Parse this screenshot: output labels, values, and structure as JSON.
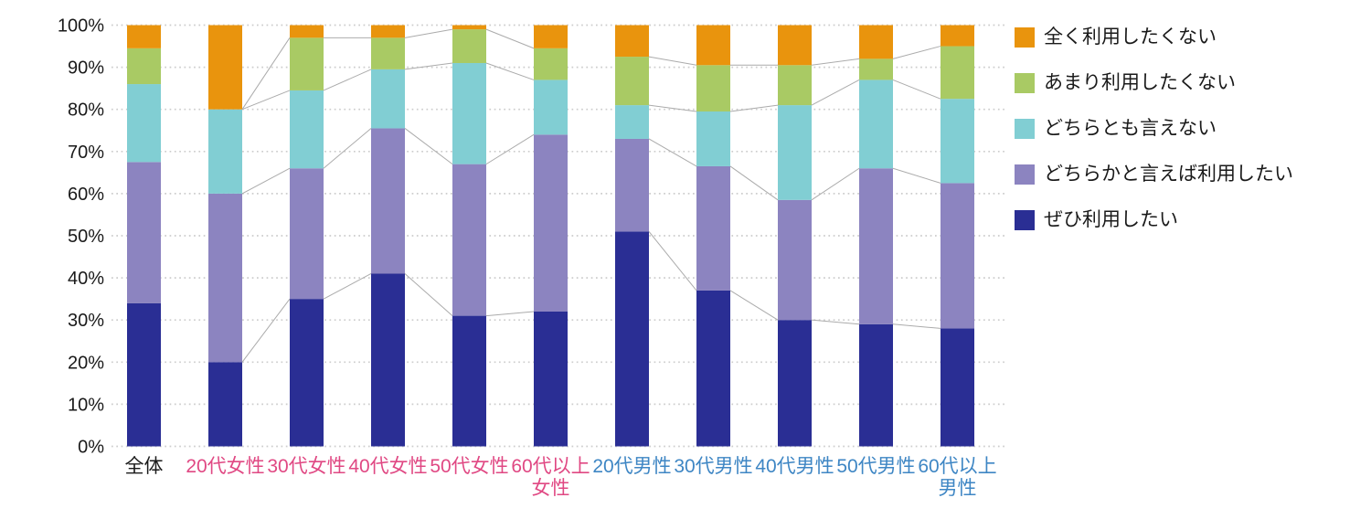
{
  "chart_data": {
    "type": "bar",
    "subtype": "stacked-percent-column",
    "title": "",
    "xlabel": "",
    "ylabel": "",
    "ylim": [
      0,
      100
    ],
    "y_ticks": [
      "0%",
      "10%",
      "20%",
      "30%",
      "40%",
      "50%",
      "60%",
      "70%",
      "80%",
      "90%",
      "100%"
    ],
    "grid": "horizontal-dotted",
    "legend_position": "right",
    "categories": [
      "全体",
      "20代女性",
      "30代女性",
      "40代女性",
      "50代女性",
      "60代以上\n女性",
      "20代男性",
      "30代男性",
      "40代男性",
      "50代男性",
      "60代以上\n男性"
    ],
    "category_label_colors": [
      "#1a1a1a",
      "#e04883",
      "#e04883",
      "#e04883",
      "#e04883",
      "#e04883",
      "#3e86c4",
      "#3e86c4",
      "#3e86c4",
      "#3e86c4",
      "#3e86c4"
    ],
    "series": [
      {
        "name": "ぜひ利用したい",
        "color": "#2a2e94",
        "values": [
          34,
          20,
          35,
          41,
          31,
          32,
          51,
          37,
          30,
          29,
          28
        ]
      },
      {
        "name": "どちらかと言えば利用したい",
        "color": "#8c84c0",
        "values": [
          33.5,
          40,
          31,
          34.5,
          36,
          42,
          22,
          29.5,
          28.5,
          37,
          34.5
        ]
      },
      {
        "name": "どちらとも言えない",
        "color": "#81ced3",
        "values": [
          18.5,
          20,
          18.5,
          14,
          24,
          13,
          8,
          13,
          22.5,
          21,
          20
        ]
      },
      {
        "name": "あまり利用したくない",
        "color": "#a9ca64",
        "values": [
          8.5,
          0,
          12.5,
          7.5,
          8,
          7.5,
          11.5,
          11,
          9.5,
          5,
          12.5
        ]
      },
      {
        "name": "全く利用したくない",
        "color": "#e9940d",
        "values": [
          5.5,
          20,
          3,
          3,
          1,
          5.5,
          7.5,
          9.5,
          9.5,
          8,
          5
        ]
      }
    ],
    "legend_items_top_to_bottom": [
      "全く利用したくない",
      "あまり利用したくない",
      "どちらとも言えない",
      "どちらかと言えば利用したい",
      "ぜひ利用したい"
    ],
    "connector_groups": [
      [
        1,
        2,
        3,
        4,
        5
      ],
      [
        6,
        7,
        8,
        9,
        10
      ]
    ],
    "colors": {
      "grid": "#cccccc",
      "connector_line": "#ababab",
      "axis_text": "#1a1a1a",
      "female_label": "#e04883",
      "male_label": "#3e86c4"
    }
  }
}
